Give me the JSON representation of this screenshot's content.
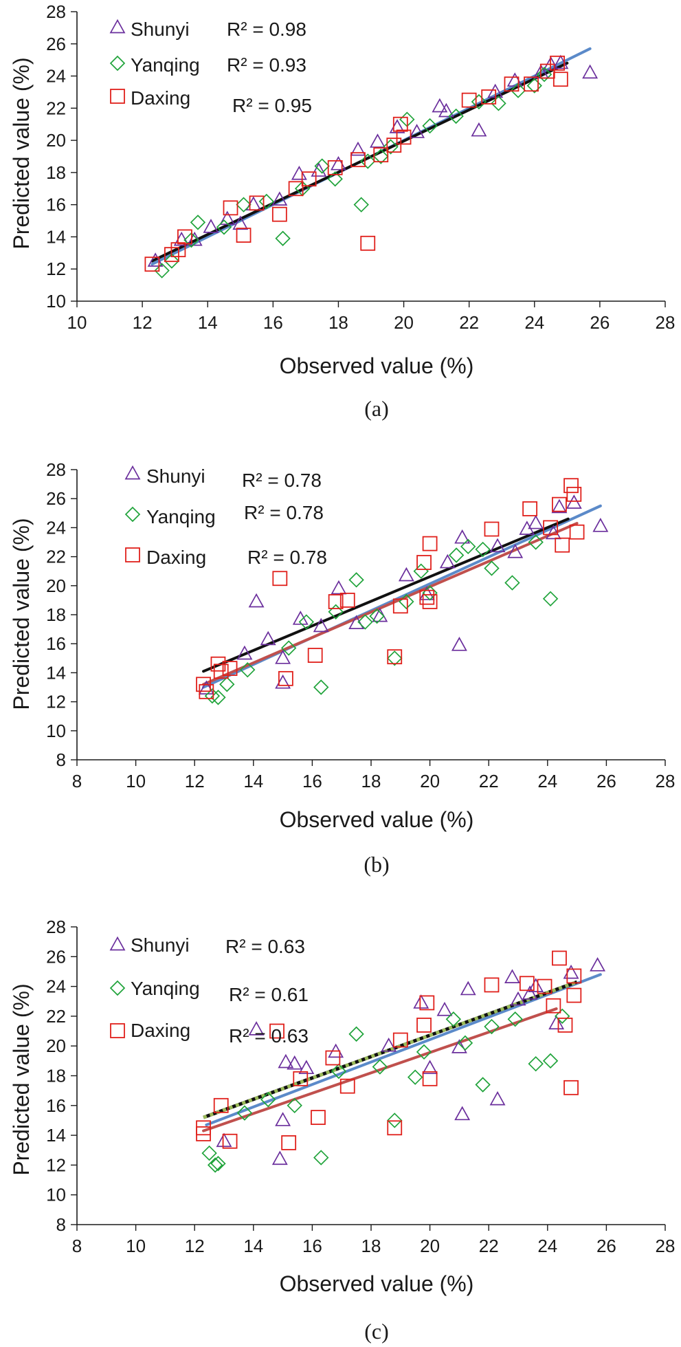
{
  "colors": {
    "shunyi": "#6a2e9c",
    "yanqing": "#1fa33a",
    "daxing": "#e0201b",
    "fit_blue": "#5b8ac9",
    "fit_black": "#111111",
    "fit_red": "#c0504d",
    "fit_green": "#9bbb59"
  },
  "chart_data": [
    {
      "type": "scatter",
      "panel_label": "(a)",
      "xlabel": "Observed value (%)",
      "ylabel": "Predicted value (%)",
      "xlim": [
        10,
        28
      ],
      "ylim": [
        10,
        28
      ],
      "xticks": [
        10,
        12,
        14,
        16,
        18,
        20,
        22,
        24,
        26,
        28
      ],
      "yticks": [
        10,
        12,
        14,
        16,
        18,
        20,
        22,
        24,
        26,
        28
      ],
      "legend": [
        {
          "name": "Shunyi",
          "marker": "triangle",
          "r2_label": "R² = 0.98"
        },
        {
          "name": "Yanqing",
          "marker": "diamond",
          "r2_label": "R² = 0.93"
        },
        {
          "name": "Daxing",
          "marker": "square",
          "r2_label": "R² = 0.95"
        }
      ],
      "series": [
        {
          "name": "Shunyi",
          "marker": "triangle",
          "color_key": "shunyi",
          "x": [
            12.4,
            13.2,
            13.6,
            14.1,
            14.6,
            15.0,
            15.4,
            16.2,
            16.8,
            17.4,
            18.0,
            18.6,
            19.2,
            19.8,
            20.4,
            21.1,
            21.3,
            22.3,
            22.8,
            23.4,
            24.2,
            24.5,
            24.8,
            25.7
          ],
          "y": [
            12.5,
            13.8,
            13.8,
            14.6,
            15.1,
            14.8,
            16.0,
            16.3,
            17.9,
            18.1,
            18.5,
            19.4,
            19.9,
            20.8,
            20.5,
            22.1,
            21.8,
            20.6,
            23.0,
            23.7,
            24.2,
            24.7,
            24.8,
            24.2
          ]
        },
        {
          "name": "Yanqing",
          "marker": "diamond",
          "color_key": "yanqing",
          "x": [
            12.6,
            12.9,
            13.5,
            13.7,
            14.5,
            15.1,
            15.8,
            16.3,
            16.9,
            17.5,
            17.9,
            18.7,
            18.9,
            19.3,
            19.6,
            20.1,
            20.8,
            21.6,
            22.3,
            22.9,
            23.5,
            24.0,
            24.3
          ],
          "y": [
            11.9,
            12.5,
            13.8,
            14.9,
            14.6,
            16.0,
            16.2,
            13.9,
            17.0,
            18.4,
            17.6,
            16.0,
            18.7,
            19.0,
            19.6,
            21.3,
            20.9,
            21.5,
            22.4,
            22.3,
            23.1,
            23.4,
            24.1
          ]
        },
        {
          "name": "Daxing",
          "marker": "square",
          "color_key": "daxing",
          "x": [
            12.3,
            12.9,
            13.1,
            13.3,
            14.7,
            15.1,
            15.5,
            16.2,
            16.7,
            17.1,
            17.9,
            18.6,
            18.9,
            19.3,
            19.7,
            19.9,
            20.0,
            22.0,
            22.6,
            23.3,
            23.9,
            24.4,
            24.7,
            24.8
          ],
          "y": [
            12.3,
            12.9,
            13.2,
            14.0,
            15.8,
            14.1,
            16.1,
            15.4,
            17.0,
            17.6,
            18.3,
            18.8,
            13.6,
            19.1,
            19.7,
            21.0,
            20.2,
            22.5,
            22.7,
            23.5,
            23.5,
            24.3,
            24.8,
            23.8
          ]
        }
      ],
      "fit_lines": [
        {
          "name": "blue",
          "color_key": "fit_blue",
          "x": [
            12.3,
            25.7
          ],
          "y": [
            12.3,
            25.7
          ]
        },
        {
          "name": "black",
          "color_key": "fit_black",
          "x": [
            12.3,
            25.0
          ],
          "y": [
            12.5,
            24.8
          ]
        }
      ]
    },
    {
      "type": "scatter",
      "panel_label": "(b)",
      "xlabel": "Observed value (%)",
      "ylabel": "Predicted value (%)",
      "xlim": [
        8,
        28
      ],
      "ylim": [
        8,
        28
      ],
      "xticks": [
        8,
        10,
        12,
        14,
        16,
        18,
        20,
        22,
        24,
        26,
        28
      ],
      "yticks": [
        8,
        10,
        12,
        14,
        16,
        18,
        20,
        22,
        24,
        26,
        28
      ],
      "legend": [
        {
          "name": "Shunyi",
          "marker": "triangle",
          "r2_label": "R² = 0.78"
        },
        {
          "name": "Yanqing",
          "marker": "diamond",
          "r2_label": "R² = 0.78"
        },
        {
          "name": "Daxing",
          "marker": "square",
          "r2_label": "R² = 0.78"
        }
      ],
      "series": [
        {
          "name": "Shunyi",
          "marker": "triangle",
          "color_key": "shunyi",
          "x": [
            12.4,
            13.7,
            14.1,
            14.5,
            15.0,
            15.0,
            15.6,
            16.3,
            16.9,
            17.5,
            18.3,
            19.2,
            19.9,
            20.6,
            21.0,
            21.1,
            22.3,
            22.9,
            23.3,
            23.6,
            24.2,
            24.4,
            24.9,
            25.8
          ],
          "y": [
            12.9,
            15.3,
            18.9,
            16.3,
            15.0,
            13.3,
            17.7,
            17.2,
            19.8,
            17.4,
            17.9,
            20.7,
            19.4,
            21.6,
            15.9,
            23.3,
            22.7,
            22.3,
            23.9,
            24.3,
            23.6,
            25.4,
            25.7,
            24.1
          ]
        },
        {
          "name": "Yanqing",
          "marker": "diamond",
          "color_key": "yanqing",
          "x": [
            12.6,
            12.8,
            13.1,
            13.8,
            15.2,
            15.8,
            16.3,
            16.8,
            17.5,
            17.8,
            18.2,
            18.8,
            19.2,
            19.7,
            20.0,
            20.9,
            21.3,
            21.8,
            22.1,
            22.8,
            23.6,
            24.1
          ],
          "y": [
            12.4,
            12.3,
            13.2,
            14.2,
            15.7,
            17.5,
            13.0,
            18.2,
            20.4,
            17.5,
            17.9,
            15.0,
            18.9,
            21.0,
            19.5,
            22.1,
            22.7,
            22.5,
            21.2,
            20.2,
            23.0,
            19.1
          ]
        },
        {
          "name": "Daxing",
          "marker": "square",
          "color_key": "daxing",
          "x": [
            12.3,
            12.4,
            12.8,
            12.9,
            13.2,
            14.9,
            15.1,
            16.1,
            16.8,
            17.2,
            18.8,
            19.0,
            19.8,
            19.9,
            20.0,
            20.0,
            22.1,
            23.4,
            24.1,
            24.4,
            24.5,
            24.8,
            24.9,
            25.0
          ],
          "y": [
            13.2,
            12.7,
            14.6,
            14.1,
            14.3,
            20.5,
            13.6,
            15.2,
            18.9,
            19.0,
            15.1,
            18.6,
            21.6,
            19.2,
            22.9,
            18.9,
            23.9,
            25.3,
            24.0,
            25.6,
            22.8,
            26.9,
            26.3,
            23.7
          ]
        }
      ],
      "fit_lines": [
        {
          "name": "blue",
          "color_key": "fit_blue",
          "x": [
            12.3,
            25.8
          ],
          "y": [
            13.0,
            25.5
          ]
        },
        {
          "name": "red",
          "color_key": "fit_red",
          "x": [
            12.3,
            25.0
          ],
          "y": [
            13.2,
            24.3
          ]
        },
        {
          "name": "black",
          "color_key": "fit_black",
          "x": [
            12.3,
            24.7
          ],
          "y": [
            14.1,
            24.6
          ]
        }
      ]
    },
    {
      "type": "scatter",
      "panel_label": "(c)",
      "xlabel": "Observed value (%)",
      "ylabel": "Predicted value (%)",
      "xlim": [
        8,
        28
      ],
      "ylim": [
        8,
        28
      ],
      "xticks": [
        8,
        10,
        12,
        14,
        16,
        18,
        20,
        22,
        24,
        26,
        28
      ],
      "yticks": [
        8,
        10,
        12,
        14,
        16,
        18,
        20,
        22,
        24,
        26,
        28
      ],
      "legend": [
        {
          "name": "Shunyi",
          "marker": "triangle",
          "r2_label": "R² = 0.63"
        },
        {
          "name": "Yanqing",
          "marker": "diamond",
          "r2_label": "R² = 0.61"
        },
        {
          "name": "Daxing",
          "marker": "square",
          "r2_label": "R² = 0.63"
        }
      ],
      "series": [
        {
          "name": "Shunyi",
          "marker": "triangle",
          "color_key": "shunyi",
          "x": [
            13.0,
            14.1,
            14.9,
            15.0,
            15.1,
            15.4,
            15.8,
            16.8,
            18.6,
            19.7,
            20.0,
            20.5,
            21.0,
            21.1,
            21.3,
            22.3,
            22.8,
            23.0,
            23.4,
            23.6,
            24.3,
            24.8,
            25.7
          ],
          "y": [
            13.6,
            21.1,
            12.4,
            15.0,
            18.9,
            18.8,
            18.5,
            19.6,
            20.0,
            22.9,
            18.5,
            22.4,
            19.9,
            15.4,
            23.8,
            16.4,
            24.6,
            23.1,
            23.5,
            24.0,
            21.5,
            24.9,
            25.4
          ]
        },
        {
          "name": "Yanqing",
          "marker": "diamond",
          "color_key": "yanqing",
          "x": [
            12.5,
            12.7,
            12.8,
            13.7,
            14.5,
            15.4,
            16.3,
            16.9,
            17.5,
            18.3,
            18.8,
            19.5,
            19.8,
            20.8,
            21.2,
            21.8,
            22.1,
            22.9,
            23.6,
            24.1,
            24.5
          ],
          "y": [
            12.8,
            12.0,
            12.1,
            15.5,
            16.4,
            16.0,
            12.5,
            18.3,
            20.8,
            18.6,
            15.0,
            17.9,
            19.6,
            21.8,
            20.2,
            17.4,
            21.3,
            21.8,
            18.8,
            19.0,
            22.0
          ]
        },
        {
          "name": "Daxing",
          "marker": "square",
          "color_key": "daxing",
          "x": [
            12.3,
            12.3,
            12.9,
            13.2,
            14.8,
            15.2,
            15.6,
            16.2,
            16.7,
            17.2,
            18.8,
            19.0,
            19.8,
            19.9,
            20.0,
            22.1,
            23.3,
            23.9,
            24.2,
            24.4,
            24.6,
            24.8,
            24.9,
            24.9
          ],
          "y": [
            14.5,
            14.1,
            16.0,
            13.6,
            21.0,
            13.5,
            17.8,
            15.2,
            19.2,
            17.3,
            14.5,
            20.4,
            21.4,
            22.9,
            17.8,
            24.1,
            24.2,
            24.0,
            22.7,
            25.9,
            21.4,
            17.2,
            24.7,
            23.4
          ]
        }
      ],
      "fit_lines": [
        {
          "name": "blue",
          "color_key": "fit_blue",
          "x": [
            12.4,
            25.8
          ],
          "y": [
            14.7,
            24.8
          ]
        },
        {
          "name": "red",
          "color_key": "fit_red",
          "x": [
            12.3,
            24.3
          ],
          "y": [
            14.3,
            22.5
          ]
        },
        {
          "name": "green-dotted",
          "color_key": "fit_green",
          "x": [
            12.3,
            25.0
          ],
          "y": [
            15.2,
            24.3
          ],
          "dotted": true
        }
      ]
    }
  ]
}
